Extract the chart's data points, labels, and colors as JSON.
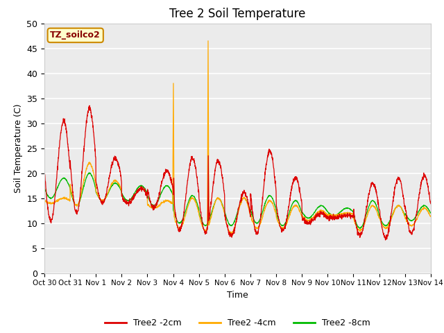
{
  "title": "Tree 2 Soil Temperature",
  "ylabel": "Soil Temperature (C)",
  "xlabel": "Time",
  "watermark": "TZ_soilco2",
  "ylim": [
    0,
    50
  ],
  "background_color": "#ebebeb",
  "grid_color": "white",
  "line_colors": {
    "2cm": "#dd0000",
    "4cm": "#ffaa00",
    "8cm": "#00bb00"
  },
  "tick_labels": [
    "Oct 30",
    "Oct 31",
    "Nov 1",
    "Nov 2",
    "Nov 3",
    "Nov 4",
    "Nov 5",
    "Nov 6",
    "Nov 7",
    "Nov 8",
    "Nov 9",
    "Nov 10",
    "Nov 11",
    "Nov 12",
    "Nov 13",
    "Nov 14"
  ],
  "tick_positions": [
    0,
    24,
    48,
    72,
    96,
    120,
    144,
    168,
    192,
    216,
    240,
    264,
    288,
    312,
    336,
    360
  ],
  "legend_labels": [
    "Tree2 -2cm",
    "Tree2 -4cm",
    "Tree2 -8cm"
  ]
}
